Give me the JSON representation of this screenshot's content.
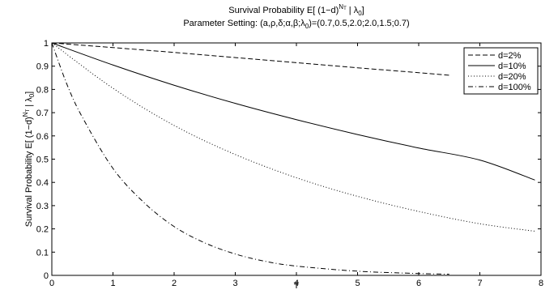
{
  "chart_data": {
    "type": "line",
    "title_line1_prefix": "Survival Probability  E[ (1−d)",
    "title_line1_sup": "N",
    "title_line1_sup_sub": "T",
    "title_line1_mid": " | λ",
    "title_line1_sub": "0",
    "title_line1_suffix": "]",
    "title_line2_prefix": "Parameter Setting: (a,ρ,δ;α,β;λ",
    "title_line2_sub": "0",
    "title_line2_suffix": ")=(0.7,0.5,2.0;2.0,1.5;0.7)",
    "xlabel": "T",
    "ylabel_prefix": "Survival Probability  E[ (1−d)",
    "ylabel_sup": "N",
    "ylabel_sup_sub": "T",
    "ylabel_mid": " | λ",
    "ylabel_sub": "0",
    "ylabel_suffix": "]",
    "xlim": [
      0,
      8
    ],
    "ylim": [
      0,
      1
    ],
    "xticks": [
      "0",
      "1",
      "2",
      "3",
      "4",
      "5",
      "6",
      "7",
      "8"
    ],
    "yticks": [
      "0",
      "0.1",
      "0.2",
      "0.3",
      "0.4",
      "0.5",
      "0.6",
      "0.7",
      "0.8",
      "0.9",
      "1"
    ],
    "grid": false,
    "legend_position": "top-right",
    "series": [
      {
        "name": "d=2%",
        "style": "dashed",
        "x": [
          0,
          1,
          2,
          3,
          4,
          5,
          6,
          6.5
        ],
        "y": [
          1.0,
          0.98,
          0.959,
          0.937,
          0.915,
          0.893,
          0.872,
          0.861
        ]
      },
      {
        "name": "d=10%",
        "style": "solid",
        "x": [
          0,
          1,
          2,
          3,
          4,
          5,
          6,
          7,
          7.9
        ],
        "y": [
          1.0,
          0.905,
          0.818,
          0.74,
          0.67,
          0.606,
          0.548,
          0.496,
          0.41
        ]
      },
      {
        "name": "d=20%",
        "style": "dotted",
        "x": [
          0,
          1,
          2,
          3,
          4,
          5,
          6,
          7,
          7.9
        ],
        "y": [
          1.0,
          0.805,
          0.645,
          0.52,
          0.42,
          0.34,
          0.275,
          0.222,
          0.19
        ]
      },
      {
        "name": "d=100%",
        "style": "dashdot",
        "x": [
          0,
          0.25,
          0.5,
          1,
          1.5,
          2,
          2.5,
          3,
          3.5,
          4,
          5,
          6,
          6.5
        ],
        "y": [
          1.0,
          0.82,
          0.68,
          0.46,
          0.315,
          0.21,
          0.14,
          0.092,
          0.06,
          0.04,
          0.018,
          0.008,
          0.005
        ]
      }
    ]
  }
}
